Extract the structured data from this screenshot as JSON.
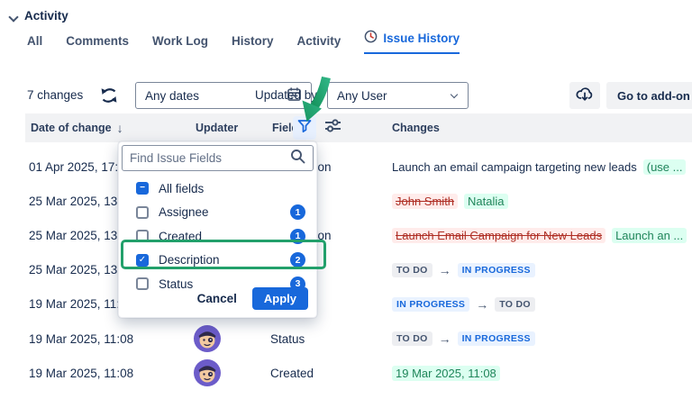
{
  "header": {
    "title": "Activity"
  },
  "tabs": {
    "items": [
      {
        "label": "All",
        "active": false
      },
      {
        "label": "Comments",
        "active": false
      },
      {
        "label": "Work Log",
        "active": false
      },
      {
        "label": "History",
        "active": false
      },
      {
        "label": "Activity",
        "active": false
      },
      {
        "label": "Issue History",
        "active": true,
        "icon": "history-clock-icon"
      }
    ]
  },
  "toolbar": {
    "changes_count": "7 changes",
    "date_filter_value": "Any dates",
    "updated_by_label": "Updated by",
    "user_filter_value": "Any User",
    "go_to_addon_label": "Go to add-on"
  },
  "table": {
    "headers": {
      "date": "Date of change",
      "updater": "Updater",
      "field": "Field",
      "changes": "Changes"
    },
    "rows": [
      {
        "date": "01 Apr 2025, 17:0",
        "avatar": false,
        "field": "Description",
        "changes": [
          {
            "type": "text",
            "value": "Launch an email campaign targeting new leads"
          },
          {
            "type": "added",
            "value": "(use ..."
          },
          {
            "type": "undo"
          }
        ]
      },
      {
        "date": "25 Mar 2025, 13:5",
        "avatar": false,
        "field": "",
        "changes": [
          {
            "type": "removed",
            "value": "John Smith"
          },
          {
            "type": "added",
            "value": "Natalia"
          }
        ]
      },
      {
        "date": "25 Mar 2025, 13:4",
        "avatar": false,
        "field": "Description",
        "changes": [
          {
            "type": "removed",
            "value": "Launch Email Campaign for New Leads"
          },
          {
            "type": "added",
            "value": "Launch an ..."
          },
          {
            "type": "undo"
          }
        ]
      },
      {
        "date": "25 Mar 2025, 13:4",
        "avatar": false,
        "field": "",
        "changes": [
          {
            "type": "lozenge-gray",
            "value": "TO DO"
          },
          {
            "type": "arrow"
          },
          {
            "type": "lozenge-blue",
            "value": "IN PROGRESS"
          }
        ]
      },
      {
        "date": "19 Mar 2025, 11:0",
        "avatar": false,
        "field": "",
        "changes": [
          {
            "type": "lozenge-blue",
            "value": "IN PROGRESS"
          },
          {
            "type": "arrow"
          },
          {
            "type": "lozenge-gray",
            "value": "TO DO"
          }
        ]
      },
      {
        "date": "19 Mar 2025, 11:08",
        "avatar": true,
        "field": "Status",
        "changes": [
          {
            "type": "lozenge-gray",
            "value": "TO DO"
          },
          {
            "type": "arrow"
          },
          {
            "type": "lozenge-blue",
            "value": "IN PROGRESS"
          }
        ]
      },
      {
        "date": "19 Mar 2025, 11:08",
        "avatar": true,
        "field": "Created",
        "changes": [
          {
            "type": "added",
            "value": "19 Mar 2025, 11:08"
          }
        ]
      }
    ]
  },
  "filter_dropdown": {
    "search_placeholder": "Find Issue Fields",
    "options": [
      {
        "label": "All fields",
        "state": "indeterminate",
        "count": "",
        "annotated": false
      },
      {
        "label": "Assignee",
        "state": "unchecked",
        "count": "1",
        "annotated": false
      },
      {
        "label": "Created",
        "state": "unchecked",
        "count": "1",
        "annotated": false
      },
      {
        "label": "Description",
        "state": "checked",
        "count": "2",
        "annotated": true
      },
      {
        "label": "Status",
        "state": "unchecked",
        "count": "3",
        "annotated": false
      }
    ],
    "cancel_label": "Cancel",
    "apply_label": "Apply"
  },
  "colors": {
    "accent_blue": "#1868DB",
    "added_green_bg": "#DCFFF1",
    "added_green_text": "#1F845A",
    "removed_red_bg": "#FFECEB",
    "removed_red_text": "#AE2E24",
    "annotation_green": "#22A06B",
    "header_band": "#F1F2F4"
  }
}
